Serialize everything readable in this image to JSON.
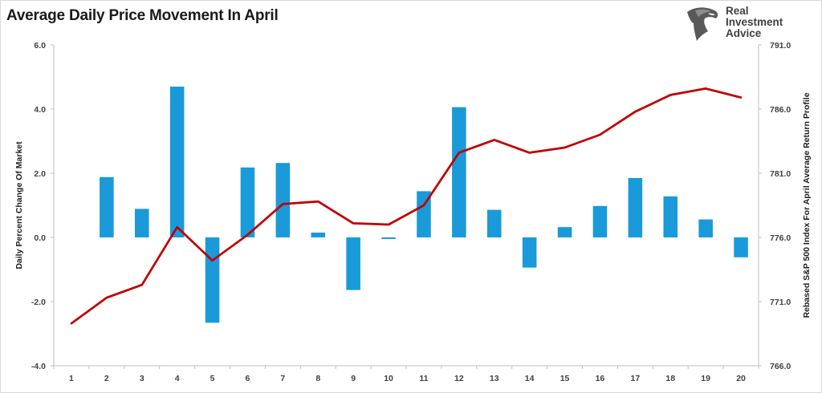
{
  "title": "Average Daily Price Movement In April",
  "logo": {
    "line1": "Real",
    "line2": "Investment",
    "line3": "Advice"
  },
  "colors": {
    "bar": "#1a9ad9",
    "line": "#c00000",
    "axis": "#bfbfbf",
    "text": "#404040"
  },
  "chart_data": {
    "type": "bar",
    "title": "Average Daily Price Movement In April",
    "xlabel": "",
    "ylabel": "Daily Percent Change Of Market",
    "y2label": "Rebased S&P 500 Index For April Average Return Profile",
    "categories": [
      "1",
      "2",
      "3",
      "4",
      "5",
      "6",
      "7",
      "8",
      "9",
      "10",
      "11",
      "12",
      "13",
      "14",
      "15",
      "16",
      "17",
      "18",
      "19",
      "20"
    ],
    "ylim": [
      -4.0,
      6.0
    ],
    "yticks": [
      "6.0",
      "4.0",
      "2.0",
      "0.0",
      "-2.0",
      "-4.0"
    ],
    "y2lim": [
      766.0,
      791.0
    ],
    "y2ticks": [
      "791.0",
      "786.0",
      "781.0",
      "776.0",
      "771.0",
      "766.0"
    ],
    "grid": false,
    "legend": "none",
    "series": [
      {
        "type": "bar",
        "axis": "left",
        "values": [
          0.0,
          1.88,
          0.89,
          4.7,
          -2.66,
          2.18,
          2.32,
          0.15,
          -1.64,
          -0.05,
          1.44,
          4.06,
          0.86,
          -0.94,
          0.32,
          0.98,
          1.85,
          1.28,
          0.56,
          -0.62
        ]
      },
      {
        "type": "line",
        "axis": "right",
        "values": [
          769.3,
          771.3,
          772.3,
          776.8,
          774.2,
          776.2,
          778.6,
          778.8,
          777.1,
          777.0,
          778.5,
          782.6,
          783.6,
          782.6,
          783.0,
          784.0,
          785.8,
          787.1,
          787.6,
          786.9
        ]
      }
    ]
  }
}
